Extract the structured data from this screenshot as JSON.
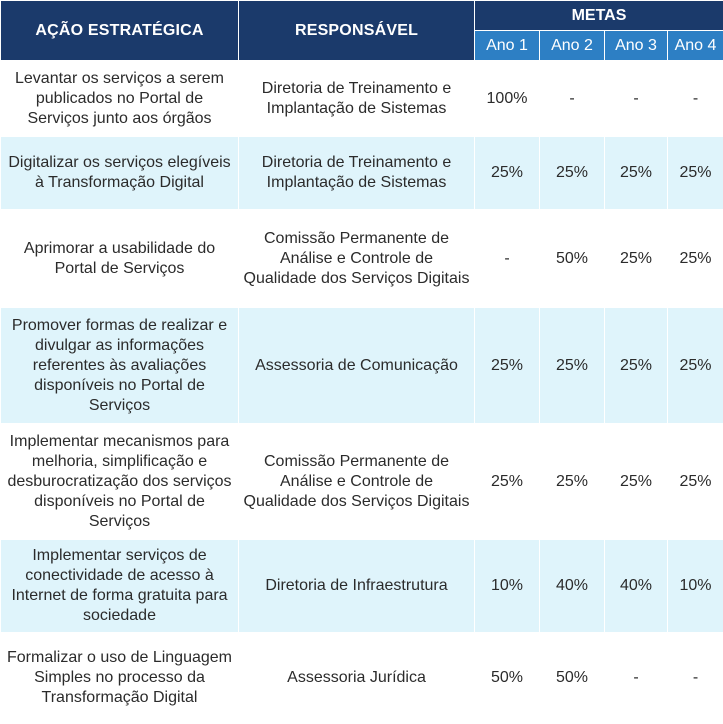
{
  "headers": {
    "acao": "AÇÃO ESTRATÉGICA",
    "responsavel": "RESPONSÁVEL",
    "metas": "METAS",
    "anos": [
      "Ano 1",
      "Ano 2",
      "Ano 3",
      "Ano 4"
    ]
  },
  "rows": [
    {
      "acao": "Levantar os serviços a serem publicados no Portal de Serviços junto aos órgãos",
      "responsavel": "Diretoria de Treinamento e Implantação de Sistemas",
      "metas": [
        "100%",
        "-",
        "-",
        "-"
      ]
    },
    {
      "acao": "Digitalizar os serviços elegíveis à Transformação Digital",
      "responsavel": "Diretoria de Treinamento e Implantação de Sistemas",
      "metas": [
        "25%",
        "25%",
        "25%",
        "25%"
      ]
    },
    {
      "acao": "Aprimorar a usabilidade do Portal de Serviços",
      "responsavel": "Comissão Permanente de Análise e Controle de Qualidade dos Serviços Digitais",
      "metas": [
        "-",
        "50%",
        "25%",
        "25%"
      ]
    },
    {
      "acao": "Promover formas de realizar e divulgar as informações referentes às avaliações disponíveis no Portal de Serviços",
      "responsavel": "Assessoria de Comunicação",
      "metas": [
        "25%",
        "25%",
        "25%",
        "25%"
      ]
    },
    {
      "acao": "Implementar mecanismos para melhoria, simplificação e desburocratização dos serviços disponíveis no Portal de Serviços",
      "responsavel": "Comissão Permanente de Análise e Controle de Qualidade dos Serviços Digitais",
      "metas": [
        "25%",
        "25%",
        "25%",
        "25%"
      ]
    },
    {
      "acao": "Implementar serviços de conectividade de acesso à Internet de forma gratuita para sociedade",
      "responsavel": "Diretoria de Infraestrutura",
      "metas": [
        "10%",
        "40%",
        "40%",
        "10%"
      ]
    },
    {
      "acao": "Formalizar o uso de Linguagem Simples no processo da Transformação Digital",
      "responsavel": "Assessoria Jurídica",
      "metas": [
        "50%",
        "50%",
        "-",
        "-"
      ]
    }
  ]
}
